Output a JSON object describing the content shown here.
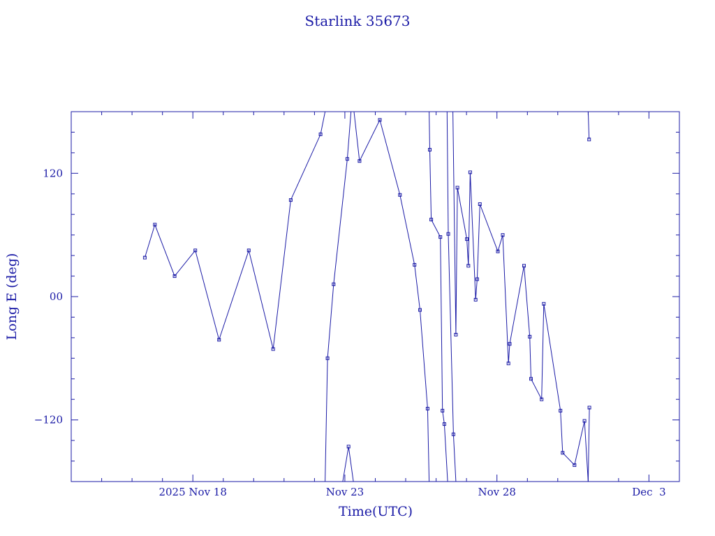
{
  "chart_data": {
    "type": "line",
    "title": "Starlink 35673",
    "xlabel": "Time(UTC)",
    "ylabel": "Long E (deg)",
    "x_unit": "days",
    "xlim": [
      14.0,
      34.0
    ],
    "ylim": [
      -180,
      180
    ],
    "x_ticks": [
      {
        "value": 18,
        "label": "2025 Nov 18"
      },
      {
        "value": 23,
        "label": "Nov 23"
      },
      {
        "value": 28,
        "label": "Nov 28"
      },
      {
        "value": 33,
        "label": "Dec  3"
      }
    ],
    "y_ticks": [
      {
        "value": 120,
        "label": "120"
      },
      {
        "value": 0,
        "label": "00"
      },
      {
        "value": -120,
        "label": "−120"
      }
    ],
    "grid": false,
    "series": [
      {
        "segments": [
          [
            [
              16.42,
              38
            ],
            [
              16.75,
              70
            ],
            [
              17.4,
              20
            ],
            [
              18.08,
              45
            ],
            [
              18.86,
              -42
            ],
            [
              19.84,
              45
            ],
            [
              20.64,
              -51
            ],
            [
              21.22,
              94
            ],
            [
              22.2,
              158
            ],
            [
              22.35,
              180
            ]
          ],
          [
            [
              22.35,
              -180
            ],
            [
              22.43,
              -60
            ],
            [
              22.63,
              12
            ],
            [
              23.08,
              134
            ],
            [
              23.2,
              180
            ]
          ],
          [
            [
              22.93,
              -180
            ],
            [
              23.12,
              -146
            ],
            [
              23.28,
              -180
            ]
          ],
          [
            [
              23.3,
              180
            ],
            [
              23.48,
              132
            ],
            [
              24.15,
              172
            ],
            [
              24.81,
              99
            ],
            [
              25.29,
              31
            ],
            [
              25.47,
              -13
            ],
            [
              25.72,
              -109
            ],
            [
              25.77,
              -180
            ]
          ],
          [
            [
              25.77,
              180
            ],
            [
              25.79,
              143
            ],
            [
              25.84,
              75
            ],
            [
              26.14,
              58
            ],
            [
              26.21,
              -111
            ],
            [
              26.27,
              -124
            ],
            [
              26.38,
              -180
            ]
          ],
          [
            [
              26.36,
              180
            ],
            [
              26.4,
              61
            ],
            [
              26.57,
              -134
            ],
            [
              26.65,
              -180
            ]
          ],
          [
            [
              26.55,
              180
            ],
            [
              26.65,
              -37
            ],
            [
              26.7,
              106
            ],
            [
              27.01,
              56
            ],
            [
              27.06,
              30
            ],
            [
              27.12,
              121
            ],
            [
              27.3,
              -3
            ],
            [
              27.35,
              17
            ],
            [
              27.44,
              90
            ],
            [
              28.03,
              44
            ],
            [
              28.19,
              60
            ],
            [
              28.38,
              -65
            ],
            [
              28.42,
              -46
            ],
            [
              28.89,
              30
            ],
            [
              29.08,
              -39
            ],
            [
              29.12,
              -80
            ],
            [
              29.47,
              -100
            ],
            [
              29.54,
              -7
            ],
            [
              30.09,
              -111
            ],
            [
              30.16,
              -152
            ],
            [
              30.55,
              -164
            ],
            [
              30.88,
              -121
            ],
            [
              31.0,
              -180
            ]
          ],
          [
            [
              31.0,
              180
            ],
            [
              31.03,
              153
            ]
          ],
          [
            [
              31.0,
              -180
            ],
            [
              31.04,
              -108
            ]
          ]
        ]
      }
    ]
  }
}
